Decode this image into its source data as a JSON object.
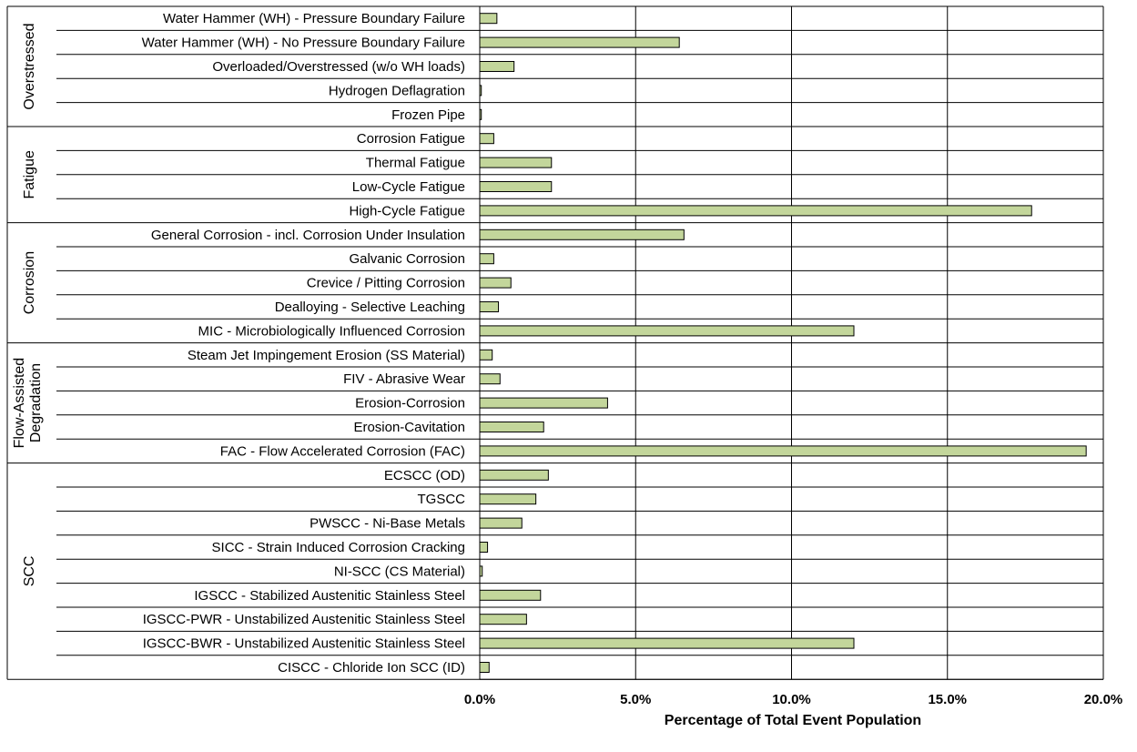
{
  "chart_data": {
    "type": "bar",
    "orientation": "horizontal",
    "title": "",
    "xlabel": "Percentage of Total  Event Population",
    "ylabel": "",
    "xlim": [
      0,
      20
    ],
    "xticks": [
      "0.0%",
      "5.0%",
      "10.0%",
      "15.0%",
      "20.0%"
    ],
    "grid": true,
    "colors": {
      "bar_fill": "#c3d69b",
      "bar_stroke": "#000000",
      "grid": "#000000"
    },
    "groups": [
      {
        "name": "Overstressed",
        "items": [
          {
            "label": "Water Hammer (WH) - Pressure Boundary Failure",
            "value": 0.55
          },
          {
            "label": "Water Hammer (WH) - No Pressure Boundary Failure",
            "value": 6.4
          },
          {
            "label": "Overloaded/Overstressed (w/o WH loads)",
            "value": 1.1
          },
          {
            "label": "Hydrogen Deflagration",
            "value": 0.05
          },
          {
            "label": "Frozen Pipe",
            "value": 0.05
          }
        ]
      },
      {
        "name": "Fatigue",
        "items": [
          {
            "label": "Corrosion Fatigue",
            "value": 0.45
          },
          {
            "label": "Thermal Fatigue",
            "value": 2.3
          },
          {
            "label": "Low-Cycle Fatigue",
            "value": 2.3
          },
          {
            "label": "High-Cycle Fatigue",
            "value": 17.7
          }
        ]
      },
      {
        "name": "Corrosion",
        "items": [
          {
            "label": "General Corrosion - incl. Corrosion Under Insulation",
            "value": 6.55
          },
          {
            "label": "Galvanic Corrosion",
            "value": 0.45
          },
          {
            "label": "Crevice / Pitting Corrosion",
            "value": 1.0
          },
          {
            "label": "Dealloying - Selective Leaching",
            "value": 0.6
          },
          {
            "label": "MIC - Microbiologically Influenced Corrosion",
            "value": 12.0
          }
        ]
      },
      {
        "name": "Flow-Assisted Degradation",
        "name_lines": [
          "Flow-Assisted",
          "Degradation"
        ],
        "items": [
          {
            "label": "Steam Jet Impingement Erosion (SS Material)",
            "value": 0.4
          },
          {
            "label": "FIV - Abrasive Wear",
            "value": 0.65
          },
          {
            "label": "Erosion-Corrosion",
            "value": 4.1
          },
          {
            "label": "Erosion-Cavitation",
            "value": 2.05
          },
          {
            "label": "FAC - Flow Accelerated Corrosion (FAC)",
            "value": 19.45
          }
        ]
      },
      {
        "name": "SCC",
        "items": [
          {
            "label": "ECSCC (OD)",
            "value": 2.2
          },
          {
            "label": "TGSCC",
            "value": 1.8
          },
          {
            "label": "PWSCC - Ni-Base Metals",
            "value": 1.35
          },
          {
            "label": "SICC - Strain Induced Corrosion Cracking",
            "value": 0.25
          },
          {
            "label": "NI-SCC (CS Material)",
            "value": 0.08
          },
          {
            "label": "IGSCC - Stabilized Austenitic Stainless Steel",
            "value": 1.95
          },
          {
            "label": "IGSCC-PWR - Unstabilized Austenitic Stainless Steel",
            "value": 1.5
          },
          {
            "label": "IGSCC-BWR - Unstabilized Austenitic Stainless Steel",
            "value": 12.0
          },
          {
            "label": "CISCC - Chloride Ion SCC (ID)",
            "value": 0.3
          }
        ]
      }
    ]
  }
}
